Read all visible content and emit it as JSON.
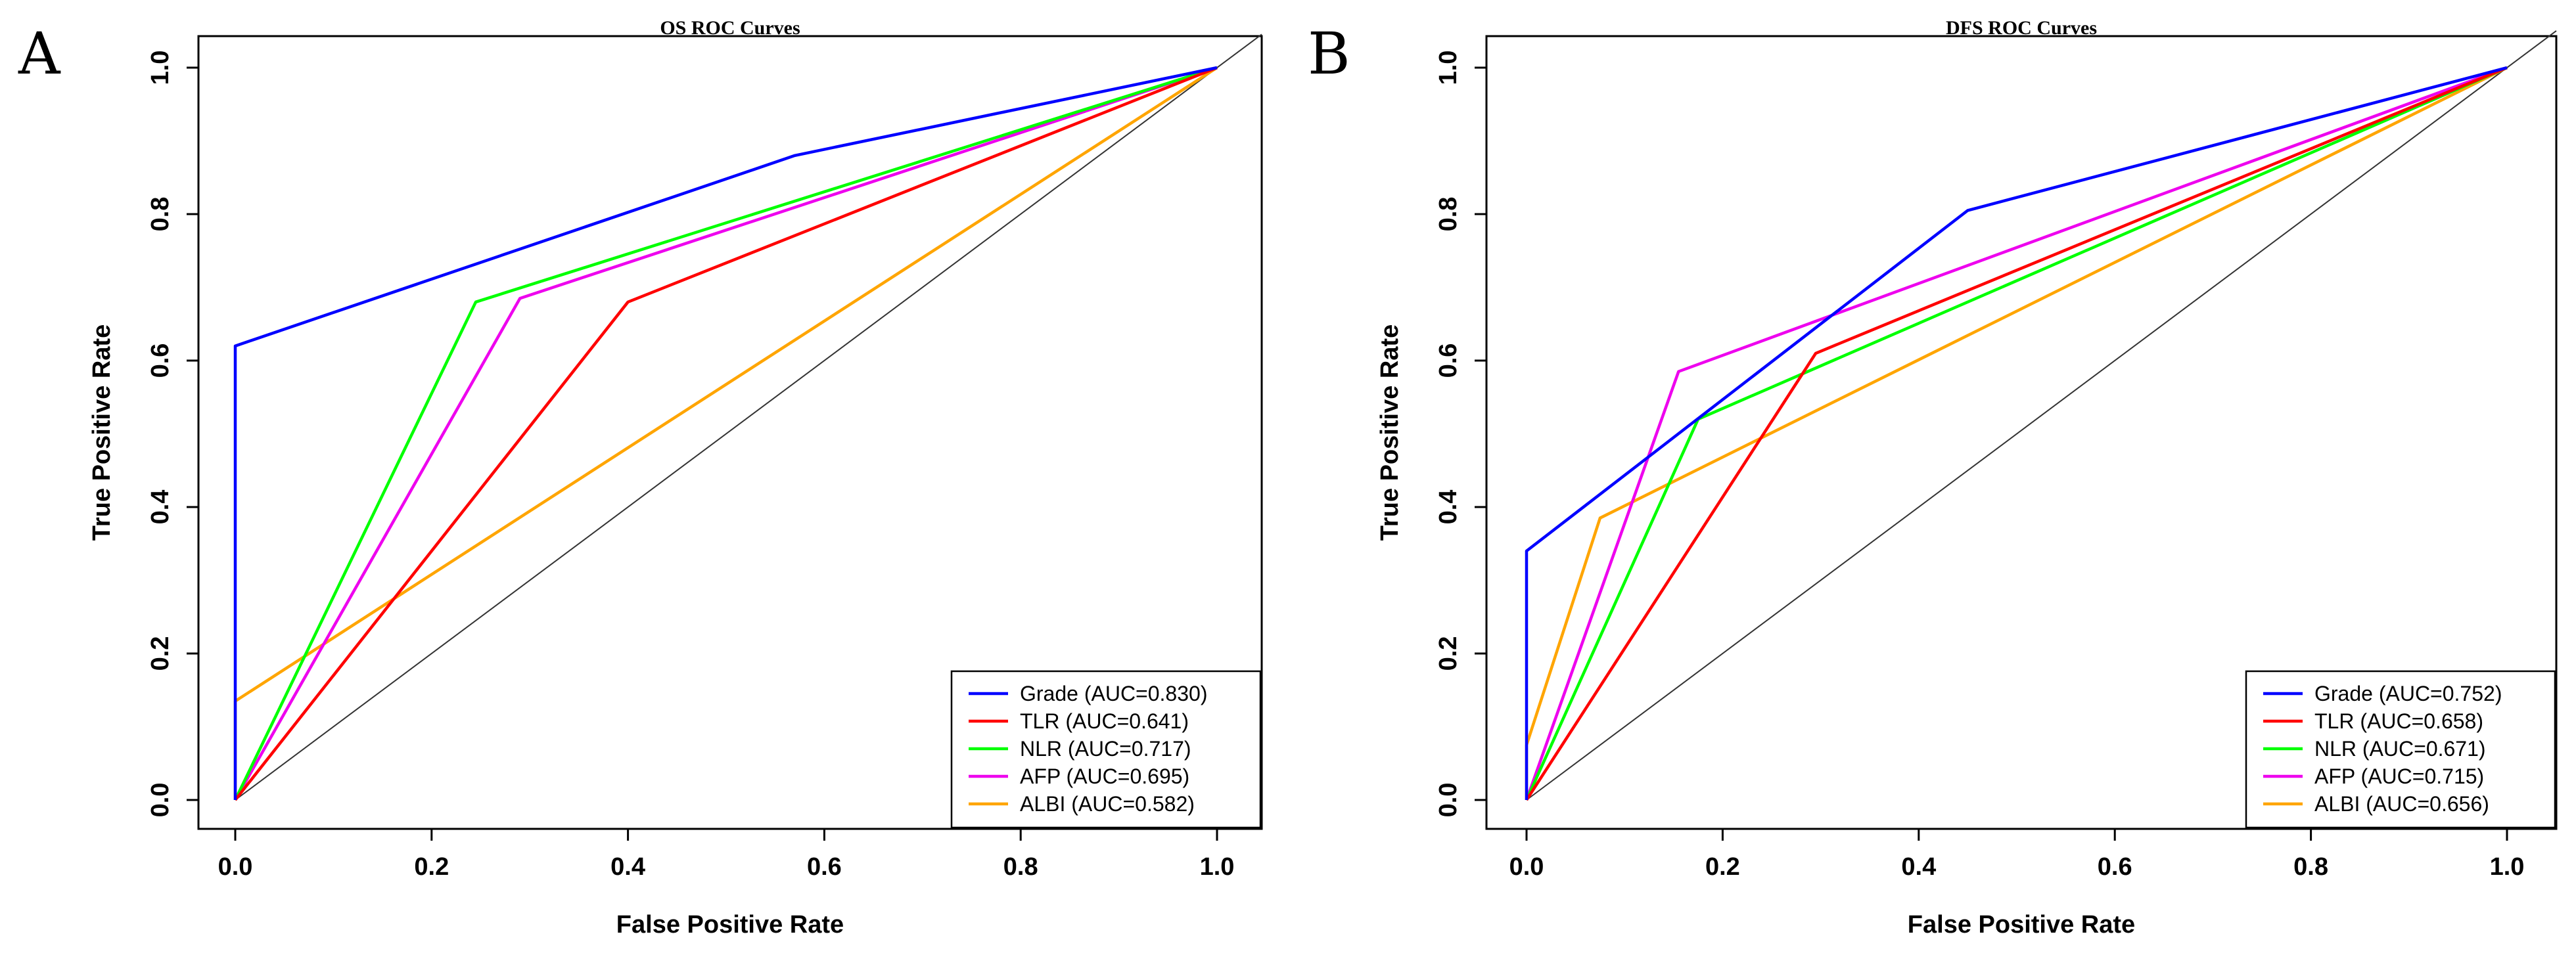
{
  "chart_data": [
    {
      "type": "line",
      "panel_label": "A",
      "title": "OS ROC Curves",
      "xlabel": "False Positive Rate",
      "ylabel": "True Positive Rate",
      "xlim": [
        0,
        1
      ],
      "ylim": [
        0,
        1
      ],
      "xticks": [
        "0.0",
        "0.2",
        "0.4",
        "0.6",
        "0.8",
        "1.0"
      ],
      "yticks": [
        "0.0",
        "0.2",
        "0.4",
        "0.6",
        "0.8",
        "1.0"
      ],
      "legend_position": "bottom-right",
      "diagonal": true,
      "series": [
        {
          "name": "Grade (AUC=0.830)",
          "color": "#0000ff",
          "x": [
            0,
            0,
            0,
            0.57,
            1
          ],
          "y": [
            0,
            0.13,
            0.62,
            0.88,
            1
          ]
        },
        {
          "name": "TLR (AUC=0.641)",
          "color": "#ff0000",
          "x": [
            0,
            0.4,
            1
          ],
          "y": [
            0,
            0.68,
            1
          ]
        },
        {
          "name": "NLR (AUC=0.717)",
          "color": "#00ff00",
          "x": [
            0,
            0.245,
            1
          ],
          "y": [
            0,
            0.68,
            1
          ]
        },
        {
          "name": "AFP (AUC=0.695)",
          "color": "#ee00ee",
          "x": [
            0,
            0.29,
            1
          ],
          "y": [
            0,
            0.685,
            1
          ]
        },
        {
          "name": "ALBI (AUC=0.582)",
          "color": "#ffa500",
          "x": [
            0,
            0,
            1
          ],
          "y": [
            0,
            0.135,
            1
          ]
        }
      ]
    },
    {
      "type": "line",
      "panel_label": "B",
      "title": "DFS ROC Curves",
      "xlabel": "False Positive Rate",
      "ylabel": "True Positive Rate",
      "xlim": [
        0,
        1
      ],
      "ylim": [
        0,
        1
      ],
      "xticks": [
        "0.0",
        "0.2",
        "0.4",
        "0.6",
        "0.8",
        "1.0"
      ],
      "yticks": [
        "0.0",
        "0.2",
        "0.4",
        "0.6",
        "0.8",
        "1.0"
      ],
      "legend_position": "bottom-right",
      "diagonal": true,
      "series": [
        {
          "name": "Grade (AUC=0.752)",
          "color": "#0000ff",
          "x": [
            0,
            0,
            0,
            0.45,
            1
          ],
          "y": [
            0,
            0.08,
            0.34,
            0.805,
            1
          ]
        },
        {
          "name": "TLR (AUC=0.658)",
          "color": "#ff0000",
          "x": [
            0,
            0.295,
            1
          ],
          "y": [
            0,
            0.61,
            1
          ]
        },
        {
          "name": "NLR (AUC=0.671)",
          "color": "#00ff00",
          "x": [
            0,
            0.175,
            1
          ],
          "y": [
            0,
            0.52,
            1
          ]
        },
        {
          "name": "AFP (AUC=0.715)",
          "color": "#ee00ee",
          "x": [
            0,
            0.155,
            1
          ],
          "y": [
            0,
            0.585,
            1
          ]
        },
        {
          "name": "ALBI (AUC=0.656)",
          "color": "#ffa500",
          "x": [
            0,
            0,
            0.075,
            1
          ],
          "y": [
            0,
            0.075,
            0.385,
            1
          ]
        }
      ]
    }
  ]
}
